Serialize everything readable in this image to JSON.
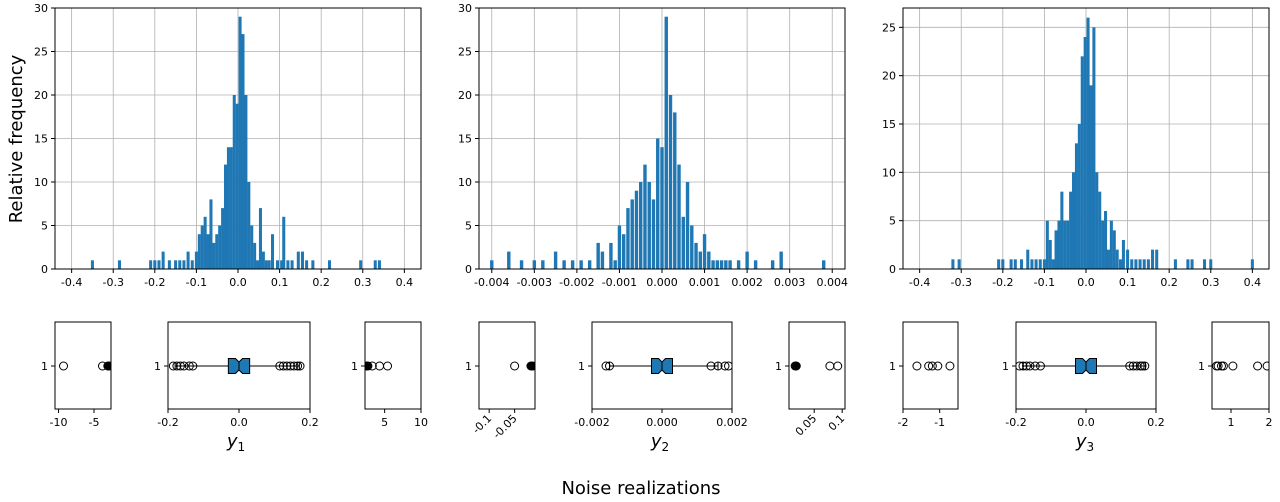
{
  "figure": {
    "ylabel": "Relative frequency",
    "xlabel": "Noise realizations"
  },
  "colors": {
    "bar": "#1f77b4",
    "grid": "#b0b0b0"
  },
  "chart_data": [
    {
      "type": "bar",
      "title": "",
      "xlim": [
        -0.44,
        0.44
      ],
      "ylim": [
        0,
        30
      ],
      "xticks": [
        -0.4,
        -0.3,
        -0.2,
        -0.1,
        0.0,
        0.1,
        0.2,
        0.3,
        0.4
      ],
      "xtick_labels": [
        "-0.4",
        "-0.3",
        "-0.2",
        "-0.1",
        "0.0",
        "0.1",
        "0.2",
        "0.3",
        "0.4"
      ],
      "yticks": [
        0,
        5,
        10,
        15,
        20,
        25,
        30
      ],
      "grid": true,
      "bin_width": 0.0073,
      "bins": [
        [
          -0.35,
          1
        ],
        [
          -0.285,
          1
        ],
        [
          -0.21,
          1
        ],
        [
          -0.2,
          1
        ],
        [
          -0.19,
          1
        ],
        [
          -0.18,
          2
        ],
        [
          -0.165,
          1
        ],
        [
          -0.15,
          1
        ],
        [
          -0.14,
          1
        ],
        [
          -0.13,
          1
        ],
        [
          -0.12,
          2
        ],
        [
          -0.11,
          1
        ],
        [
          -0.1,
          2
        ],
        [
          -0.093,
          4
        ],
        [
          -0.086,
          5
        ],
        [
          -0.079,
          6
        ],
        [
          -0.072,
          4
        ],
        [
          -0.065,
          8
        ],
        [
          -0.058,
          3
        ],
        [
          -0.051,
          4
        ],
        [
          -0.044,
          5
        ],
        [
          -0.037,
          7
        ],
        [
          -0.03,
          12
        ],
        [
          -0.023,
          14
        ],
        [
          -0.016,
          14
        ],
        [
          -0.009,
          20
        ],
        [
          -0.002,
          19
        ],
        [
          0.005,
          29
        ],
        [
          0.012,
          27
        ],
        [
          0.019,
          20
        ],
        [
          0.026,
          10
        ],
        [
          0.033,
          5
        ],
        [
          0.04,
          3
        ],
        [
          0.047,
          1
        ],
        [
          0.054,
          7
        ],
        [
          0.061,
          2
        ],
        [
          0.068,
          1
        ],
        [
          0.075,
          1
        ],
        [
          0.083,
          4
        ],
        [
          0.095,
          1
        ],
        [
          0.105,
          1
        ],
        [
          0.11,
          6
        ],
        [
          0.12,
          1
        ],
        [
          0.13,
          1
        ],
        [
          0.145,
          2
        ],
        [
          0.155,
          2
        ],
        [
          0.165,
          1
        ],
        [
          0.18,
          1
        ],
        [
          0.22,
          1
        ],
        [
          0.295,
          1
        ],
        [
          0.33,
          1
        ],
        [
          0.34,
          1
        ]
      ],
      "boxplot": {
        "category": "1",
        "panels": [
          {
            "xlim": [
              -10.5,
              -2.6
            ],
            "xticks": [
              -10,
              -5
            ],
            "xtick_labels": [
              "-10",
              "-5"
            ],
            "outliers": [
              -9.3,
              -3.8
            ],
            "filled": [
              -3.05,
              -2.9
            ]
          },
          {
            "xlim": [
              -0.2,
              0.2
            ],
            "xticks": [
              -0.2,
              0.0,
              0.2
            ],
            "xtick_labels": [
              "-0.2",
              "0.0",
              "0.2"
            ],
            "q1": -0.03,
            "median": 0.0,
            "q3": 0.03,
            "notch_low": -0.01,
            "notch_high": 0.01,
            "whisker_low": -0.18,
            "whisker_high": 0.17,
            "outliers": [
              -0.185,
              -0.175,
              -0.165,
              -0.155,
              -0.14,
              -0.13,
              0.115,
              0.125,
              0.135,
              0.145,
              0.155,
              0.165,
              0.172
            ]
          },
          {
            "xlim": [
              2.3,
              10
            ],
            "xticks": [
              5,
              10
            ],
            "xtick_labels": [
              "5",
              "10"
            ],
            "outliers": [
              3.3,
              4.3,
              5.4
            ],
            "filled": [
              2.55,
              2.7
            ]
          }
        ],
        "xlabel": "y1"
      }
    },
    {
      "type": "bar",
      "title": "",
      "xlim": [
        -0.0043,
        0.0043
      ],
      "ylim": [
        0,
        30
      ],
      "xticks": [
        -0.004,
        -0.003,
        -0.002,
        -0.001,
        0.0,
        0.001,
        0.002,
        0.003,
        0.004
      ],
      "xtick_labels": [
        "-0.004",
        "-0.003",
        "-0.002",
        "-0.001",
        "0.000",
        "0.001",
        "0.002",
        "0.003",
        "0.004"
      ],
      "yticks": [
        0,
        5,
        10,
        15,
        20,
        25,
        30
      ],
      "grid": true,
      "bin_width": 8e-05,
      "bins": [
        [
          -0.004,
          1
        ],
        [
          -0.0036,
          2
        ],
        [
          -0.0033,
          1
        ],
        [
          -0.003,
          1
        ],
        [
          -0.0028,
          1
        ],
        [
          -0.0025,
          2
        ],
        [
          -0.0023,
          1
        ],
        [
          -0.0021,
          1
        ],
        [
          -0.0019,
          1
        ],
        [
          -0.0017,
          1
        ],
        [
          -0.0015,
          3
        ],
        [
          -0.0014,
          2
        ],
        [
          -0.0012,
          3
        ],
        [
          -0.0011,
          1
        ],
        [
          -0.001,
          5
        ],
        [
          -0.0009,
          4
        ],
        [
          -0.0008,
          7
        ],
        [
          -0.0007,
          8
        ],
        [
          -0.0006,
          9
        ],
        [
          -0.0005,
          10
        ],
        [
          -0.0004,
          12
        ],
        [
          -0.0003,
          10
        ],
        [
          -0.0002,
          8
        ],
        [
          -0.0001,
          15
        ],
        [
          0.0,
          14
        ],
        [
          0.0001,
          29
        ],
        [
          0.0002,
          20
        ],
        [
          0.0003,
          18
        ],
        [
          0.0004,
          12
        ],
        [
          0.0005,
          6
        ],
        [
          0.0006,
          10
        ],
        [
          0.0007,
          5
        ],
        [
          0.0008,
          3
        ],
        [
          0.0009,
          2
        ],
        [
          0.001,
          4
        ],
        [
          0.0011,
          2
        ],
        [
          0.0012,
          1
        ],
        [
          0.0013,
          1
        ],
        [
          0.0014,
          1
        ],
        [
          0.0015,
          1
        ],
        [
          0.0016,
          1
        ],
        [
          0.0018,
          1
        ],
        [
          0.002,
          2
        ],
        [
          0.0022,
          1
        ],
        [
          0.0026,
          1
        ],
        [
          0.0028,
          2
        ],
        [
          0.0038,
          1
        ]
      ],
      "boxplot": {
        "category": "1",
        "panels": [
          {
            "xlim": [
              -0.12,
              -0.01
            ],
            "xticks": [
              -0.1,
              -0.05
            ],
            "xtick_labels": [
              "-0.1",
              "-0.05"
            ],
            "outliers": [
              -0.05
            ],
            "filled": [
              -0.018,
              -0.015
            ]
          },
          {
            "xlim": [
              -0.002,
              0.002
            ],
            "xticks": [
              -0.002,
              0.0,
              0.002
            ],
            "xtick_labels": [
              "-0.002",
              "0.000",
              "0.002"
            ],
            "q1": -0.0003,
            "median": 0.0,
            "q3": 0.0003,
            "notch_low": -0.0001,
            "notch_high": 0.0001,
            "whisker_low": -0.0015,
            "whisker_high": 0.0016,
            "outliers": [
              -0.0016,
              -0.0015,
              0.0014,
              0.0016,
              0.0018,
              0.0019
            ]
          },
          {
            "xlim": [
              0.005,
              0.105
            ],
            "xticks": [
              0.05,
              0.1
            ],
            "xtick_labels": [
              "0.05",
              "0.1"
            ],
            "outliers": [
              0.078,
              0.092
            ],
            "filled": [
              0.016,
              0.018
            ]
          }
        ],
        "xlabel": "y2"
      }
    },
    {
      "type": "bar",
      "title": "",
      "xlim": [
        -0.44,
        0.44
      ],
      "ylim": [
        0,
        27
      ],
      "xticks": [
        -0.4,
        -0.3,
        -0.2,
        -0.1,
        0.0,
        0.1,
        0.2,
        0.3,
        0.4
      ],
      "xtick_labels": [
        "-0.4",
        "-0.3",
        "-0.2",
        "-0.1",
        "0.0",
        "0.1",
        "0.2",
        "0.3",
        "0.4"
      ],
      "yticks": [
        0,
        5,
        10,
        15,
        20,
        25
      ],
      "grid": true,
      "bin_width": 0.0073,
      "bins": [
        [
          -0.32,
          1
        ],
        [
          -0.305,
          1
        ],
        [
          -0.21,
          1
        ],
        [
          -0.2,
          1
        ],
        [
          -0.18,
          1
        ],
        [
          -0.17,
          1
        ],
        [
          -0.155,
          1
        ],
        [
          -0.14,
          2
        ],
        [
          -0.13,
          1
        ],
        [
          -0.12,
          1
        ],
        [
          -0.11,
          1
        ],
        [
          -0.1,
          1
        ],
        [
          -0.093,
          5
        ],
        [
          -0.086,
          3
        ],
        [
          -0.079,
          1
        ],
        [
          -0.072,
          4
        ],
        [
          -0.065,
          5
        ],
        [
          -0.058,
          8
        ],
        [
          -0.051,
          5
        ],
        [
          -0.044,
          5
        ],
        [
          -0.037,
          8
        ],
        [
          -0.03,
          10
        ],
        [
          -0.023,
          13
        ],
        [
          -0.016,
          15
        ],
        [
          -0.009,
          22
        ],
        [
          -0.002,
          24
        ],
        [
          0.005,
          26
        ],
        [
          0.012,
          19
        ],
        [
          0.019,
          25
        ],
        [
          0.026,
          10
        ],
        [
          0.033,
          8
        ],
        [
          0.04,
          5
        ],
        [
          0.047,
          6
        ],
        [
          0.054,
          2
        ],
        [
          0.061,
          5
        ],
        [
          0.068,
          4
        ],
        [
          0.075,
          2
        ],
        [
          0.083,
          1
        ],
        [
          0.09,
          3
        ],
        [
          0.1,
          2
        ],
        [
          0.11,
          1
        ],
        [
          0.12,
          1
        ],
        [
          0.13,
          1
        ],
        [
          0.14,
          1
        ],
        [
          0.15,
          1
        ],
        [
          0.16,
          2
        ],
        [
          0.17,
          2
        ],
        [
          0.215,
          1
        ],
        [
          0.245,
          1
        ],
        [
          0.255,
          1
        ],
        [
          0.285,
          1
        ],
        [
          0.3,
          1
        ],
        [
          0.4,
          1
        ]
      ],
      "boxplot": {
        "category": "1",
        "panels": [
          {
            "xlim": [
              -2.0,
              -0.5
            ],
            "xticks": [
              -2,
              -1
            ],
            "xtick_labels": [
              "-2",
              "-1"
            ],
            "outliers": [
              -1.62,
              -1.3,
              -1.2,
              -1.05,
              -0.72
            ]
          },
          {
            "xlim": [
              -0.2,
              0.2
            ],
            "xticks": [
              -0.2,
              0.0,
              0.2
            ],
            "xtick_labels": [
              "-0.2",
              "0.0",
              "0.2"
            ],
            "q1": -0.03,
            "median": 0.0,
            "q3": 0.03,
            "notch_low": -0.01,
            "notch_high": 0.01,
            "whisker_low": -0.18,
            "whisker_high": 0.17,
            "outliers": [
              -0.19,
              -0.18,
              -0.17,
              -0.16,
              -0.145,
              -0.13,
              0.125,
              0.135,
              0.145,
              0.155,
              0.16,
              0.168
            ]
          },
          {
            "xlim": [
              0.5,
              2.0
            ],
            "xticks": [
              1,
              2
            ],
            "xtick_labels": [
              "1",
              "2"
            ],
            "outliers": [
              0.62,
              0.66,
              0.75,
              0.8,
              1.05,
              1.7,
              1.95
            ]
          }
        ],
        "xlabel": "y3"
      }
    }
  ]
}
